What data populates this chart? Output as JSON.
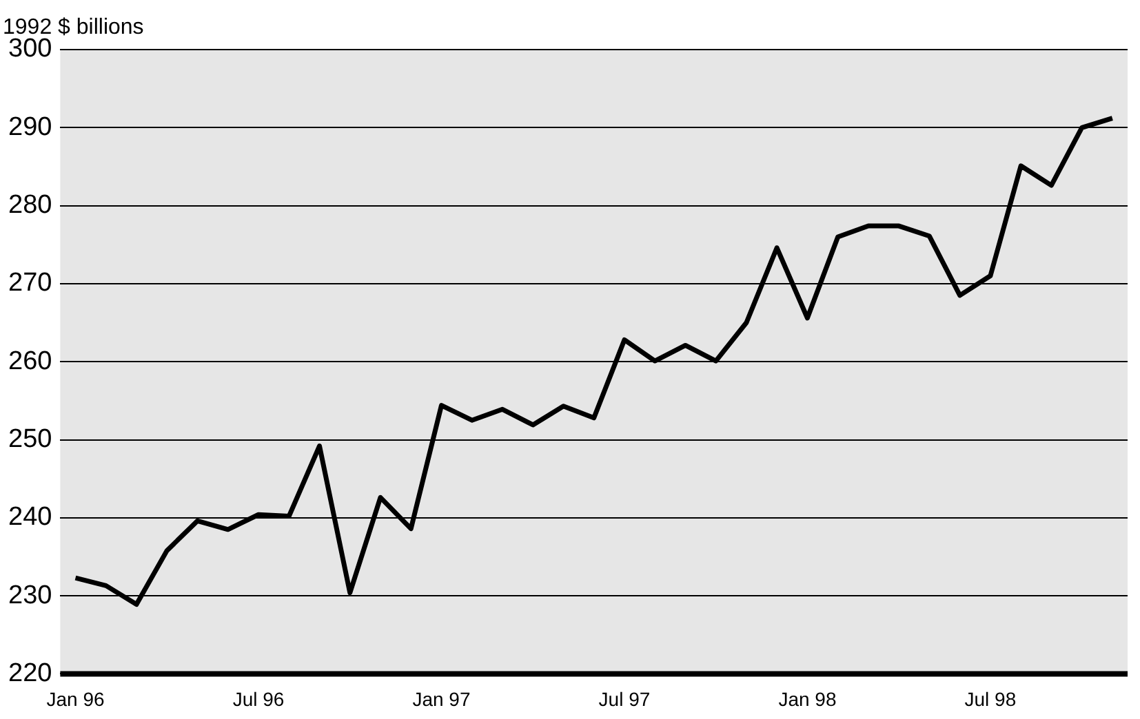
{
  "chart_data": {
    "type": "line",
    "ylabel": "1992 $ billions",
    "categories": [
      "Jan 96",
      null,
      null,
      null,
      null,
      null,
      "Jul 96",
      null,
      null,
      null,
      null,
      null,
      "Jan 97",
      null,
      null,
      null,
      null,
      null,
      "Jul 97",
      null,
      null,
      null,
      null,
      null,
      "Jan 98",
      null,
      null,
      null,
      null,
      null,
      "Jul 98",
      null,
      null,
      null,
      null
    ],
    "series": [
      {
        "color": "#000000",
        "values": [
          232.3,
          231.3,
          228.9,
          235.8,
          239.6,
          238.5,
          240.4,
          240.2,
          249.2,
          230.4,
          242.6,
          238.6,
          254.4,
          252.5,
          253.9,
          251.9,
          254.3,
          252.8,
          262.8,
          260.1,
          262.1,
          260.1,
          265.0,
          274.6,
          265.6,
          276.0,
          277.4,
          277.4,
          276.1,
          268.5,
          271.0,
          285.1,
          282.6,
          290.0,
          291.2
        ]
      }
    ],
    "ylim": [
      220,
      300
    ],
    "yticks": [
      220,
      230,
      240,
      250,
      260,
      270,
      280,
      290,
      300
    ],
    "grid": "y",
    "legend": false,
    "marker": "none",
    "line_style": "solid"
  }
}
